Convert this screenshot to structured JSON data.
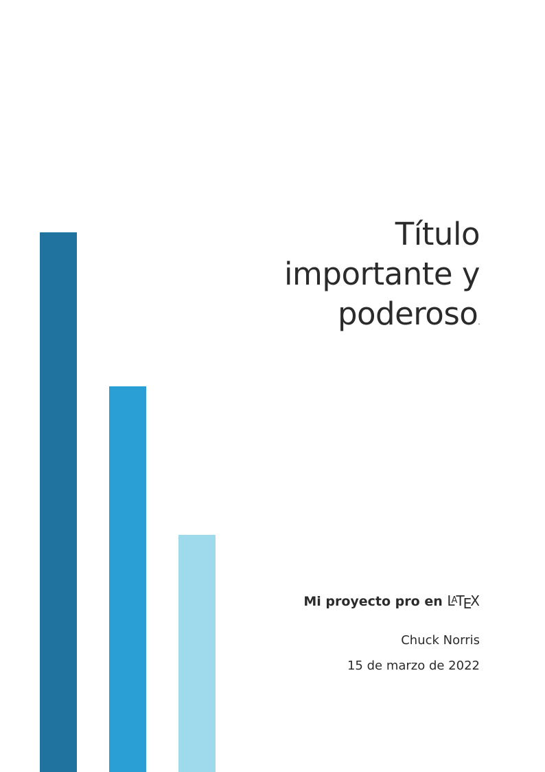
{
  "cover": {
    "title_line1": "Título",
    "title_line2": "importante y",
    "title_line3": "poderoso",
    "title_end": ".",
    "subtitle": "Mi proyecto pro en",
    "latex_logo": "LaTeX",
    "author": "Chuck Norris",
    "date": "15 de marzo de 2022"
  },
  "decor": {
    "bar_colors": [
      "#21739f",
      "#2a9fd6",
      "#9fd9ec"
    ]
  }
}
